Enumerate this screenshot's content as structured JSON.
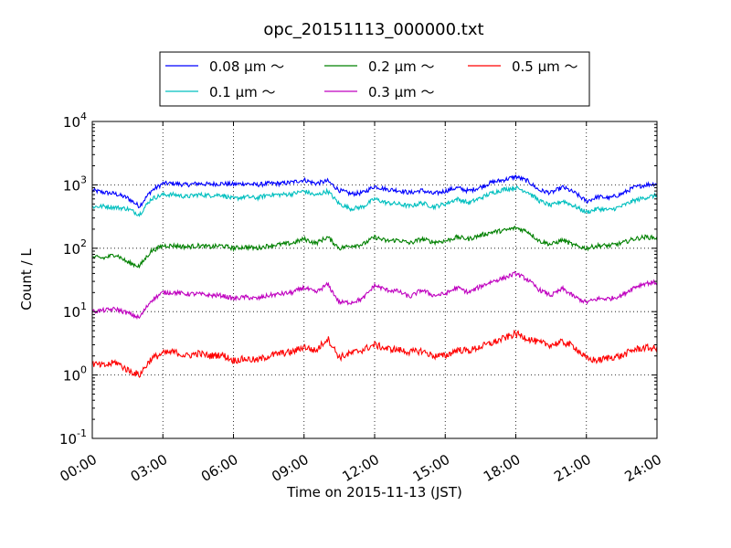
{
  "chart_data": {
    "type": "line",
    "title": "opc_20151113_000000.txt",
    "xlabel": "Time on 2015-11-13 (JST)",
    "ylabel": "Count / L",
    "y_scale": "log",
    "ylim": [
      0.1,
      10000
    ],
    "x_range_hours": [
      0,
      24
    ],
    "x_tick_labels": [
      "00:00",
      "03:00",
      "06:00",
      "09:00",
      "12:00",
      "15:00",
      "18:00",
      "21:00",
      "24:00"
    ],
    "y_ticks": [
      {
        "base": "10",
        "exp": "-1"
      },
      {
        "base": "10",
        "exp": "0"
      },
      {
        "base": "10",
        "exp": "1"
      },
      {
        "base": "10",
        "exp": "2"
      },
      {
        "base": "10",
        "exp": "3"
      },
      {
        "base": "10",
        "exp": "4"
      }
    ],
    "grid": true,
    "legend_position": "top",
    "x_hours": [
      0,
      0.5,
      1,
      1.5,
      2,
      2.5,
      3,
      3.5,
      4,
      4.5,
      5,
      5.5,
      6,
      6.5,
      7,
      7.5,
      8,
      8.5,
      9,
      9.5,
      10,
      10.5,
      11,
      11.5,
      12,
      12.5,
      13,
      13.5,
      14,
      14.5,
      15,
      15.5,
      16,
      16.5,
      17,
      17.5,
      18,
      18.5,
      19,
      19.5,
      20,
      20.5,
      21,
      21.5,
      22,
      22.5,
      23,
      23.5,
      24
    ],
    "series": [
      {
        "name": "0.08 μm ～",
        "color": "#0000ff",
        "values": [
          820,
          760,
          720,
          620,
          460,
          800,
          1050,
          1050,
          1000,
          1050,
          1020,
          1050,
          1020,
          1050,
          1000,
          1050,
          1050,
          1100,
          1200,
          1050,
          1150,
          820,
          720,
          750,
          950,
          850,
          820,
          750,
          820,
          720,
          800,
          900,
          800,
          920,
          1100,
          1200,
          1350,
          1150,
          820,
          750,
          920,
          750,
          550,
          650,
          620,
          720,
          900,
          1000,
          1050
        ]
      },
      {
        "name": "0.1 μm ～",
        "color": "#00bfbf",
        "values": [
          450,
          460,
          440,
          420,
          340,
          600,
          700,
          700,
          650,
          700,
          680,
          700,
          600,
          650,
          620,
          700,
          700,
          720,
          800,
          680,
          800,
          500,
          420,
          450,
          600,
          520,
          500,
          460,
          520,
          450,
          500,
          600,
          520,
          620,
          750,
          850,
          900,
          780,
          560,
          470,
          560,
          460,
          370,
          420,
          400,
          460,
          560,
          630,
          680
        ]
      },
      {
        "name": "0.2 μm ～",
        "color": "#008000",
        "values": [
          72,
          70,
          80,
          60,
          52,
          90,
          110,
          110,
          105,
          110,
          105,
          110,
          100,
          105,
          100,
          110,
          115,
          120,
          140,
          120,
          150,
          100,
          110,
          115,
          150,
          130,
          135,
          120,
          140,
          125,
          130,
          150,
          140,
          160,
          180,
          190,
          210,
          185,
          130,
          115,
          135,
          110,
          100,
          110,
          110,
          120,
          140,
          150,
          145
        ]
      },
      {
        "name": "0.3 μm ～",
        "color": "#bf00bf",
        "values": [
          10,
          10.5,
          11,
          9.5,
          8,
          15,
          20,
          20,
          19,
          19,
          18,
          18,
          16,
          17,
          16,
          18,
          19,
          20,
          24,
          20,
          27,
          14,
          14,
          16,
          26,
          22,
          21,
          17,
          22,
          18,
          19,
          24,
          20,
          25,
          30,
          34,
          40,
          32,
          22,
          18,
          23,
          17,
          14,
          16,
          16,
          18,
          24,
          28,
          29
        ]
      },
      {
        "name": "0.5 μm ～",
        "color": "#ff0000",
        "values": [
          1.5,
          1.4,
          1.6,
          1.2,
          1.0,
          1.8,
          2.2,
          2.3,
          2.0,
          2.2,
          2.0,
          2.1,
          1.7,
          1.8,
          1.7,
          2.0,
          2.2,
          2.3,
          2.8,
          2.4,
          3.8,
          1.9,
          2.2,
          2.5,
          3.0,
          2.6,
          2.5,
          2.3,
          2.4,
          2.0,
          2.0,
          2.5,
          2.4,
          2.8,
          3.2,
          3.8,
          4.5,
          3.8,
          3.2,
          3.0,
          3.3,
          2.8,
          1.8,
          1.7,
          1.9,
          2.0,
          2.5,
          2.7,
          2.6
        ]
      }
    ]
  }
}
